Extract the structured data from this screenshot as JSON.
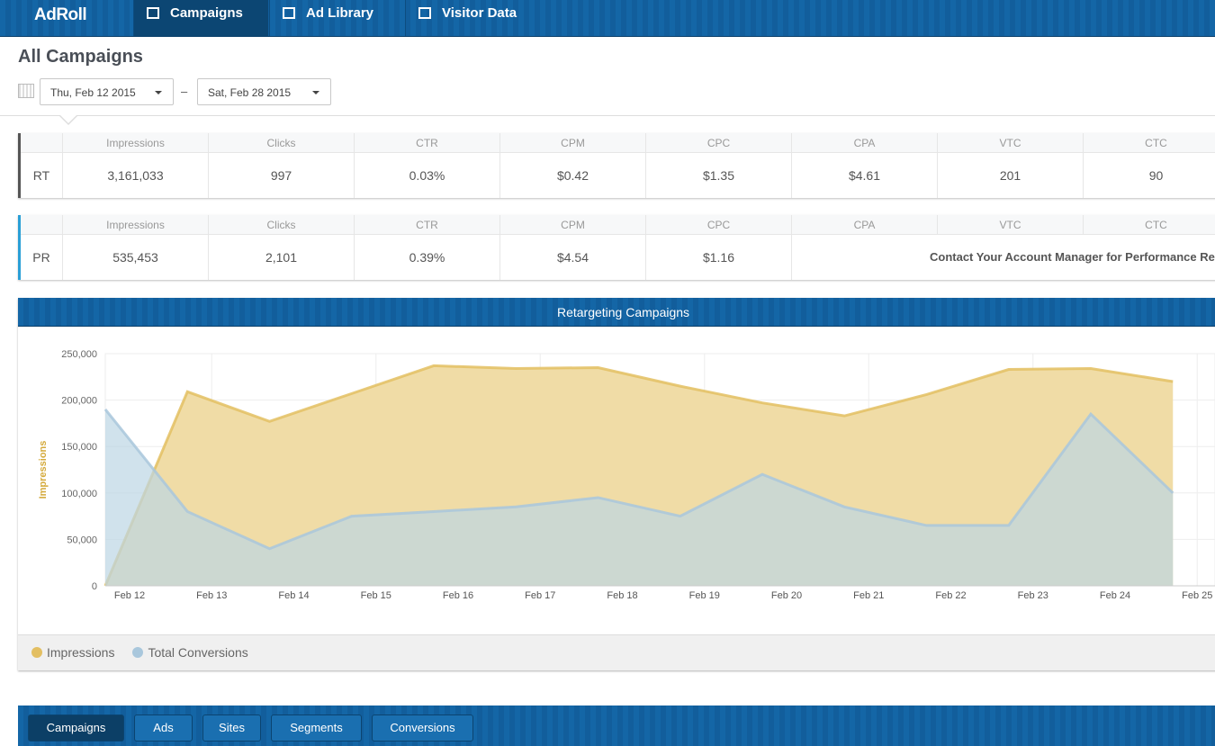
{
  "nav": {
    "logo": "AdRoll",
    "tabs": [
      "Campaigns",
      "Ad Library",
      "Visitor Data"
    ]
  },
  "page_title": "All Campaigns",
  "date_range": {
    "start": "Thu, Feb 12 2015",
    "separator": "–",
    "end": "Sat, Feb 28 2015"
  },
  "stats": [
    {
      "label": "RT",
      "headers": [
        "Impressions",
        "Clicks",
        "CTR",
        "CPM",
        "CPC",
        "CPA",
        "VTC",
        "CTC"
      ],
      "values": [
        "3,161,033",
        "997",
        "0.03%",
        "$0.42",
        "$1.35",
        "$4.61",
        "201",
        "90"
      ]
    },
    {
      "label": "PR",
      "headers": [
        "Impressions",
        "Clicks",
        "CTR",
        "CPM",
        "CPC",
        "CPA",
        "VTC",
        "CTC"
      ],
      "values": [
        "535,453",
        "2,101",
        "0.39%",
        "$4.54",
        "$1.16"
      ],
      "message": "Contact Your Account Manager for Performance Re"
    }
  ],
  "chart_data": {
    "type": "area",
    "title": "Retargeting Campaigns",
    "y_label": "Impressions",
    "categories": [
      "Feb 12",
      "Feb 13",
      "Feb 14",
      "Feb 15",
      "Feb 16",
      "Feb 17",
      "Feb 18",
      "Feb 19",
      "Feb 20",
      "Feb 21",
      "Feb 22",
      "Feb 23",
      "Feb 24",
      "Feb 25"
    ],
    "series": [
      {
        "name": "Impressions",
        "color": "#e3bf62",
        "fill": "#f0dca6",
        "values": [
          0,
          209000,
          177000,
          207000,
          237000,
          234000,
          235000,
          215000,
          197000,
          183000,
          206000,
          233000,
          234000,
          220000
        ]
      },
      {
        "name": "Total Conversions",
        "color": "#a9c7dc",
        "fill": "#bcd6e4",
        "values": [
          190000,
          80000,
          40000,
          75000,
          80000,
          85000,
          95000,
          75000,
          120000,
          85000,
          65000,
          65000,
          185000,
          100000
        ]
      }
    ],
    "ylim": [
      0,
      250000
    ],
    "yticks": [
      0,
      {
        "value": 50000,
        "label": "50,000"
      },
      {
        "value": 100000,
        "label": "100,000"
      },
      {
        "value": 150000,
        "label": "150,000"
      },
      {
        "value": 200000,
        "label": "200,000"
      },
      {
        "value": 250000,
        "label": "250,000"
      }
    ],
    "grid": true,
    "legend": "bottom-left"
  },
  "bottom_tabs": [
    "Campaigns",
    "Ads",
    "Sites",
    "Segments",
    "Conversions"
  ]
}
